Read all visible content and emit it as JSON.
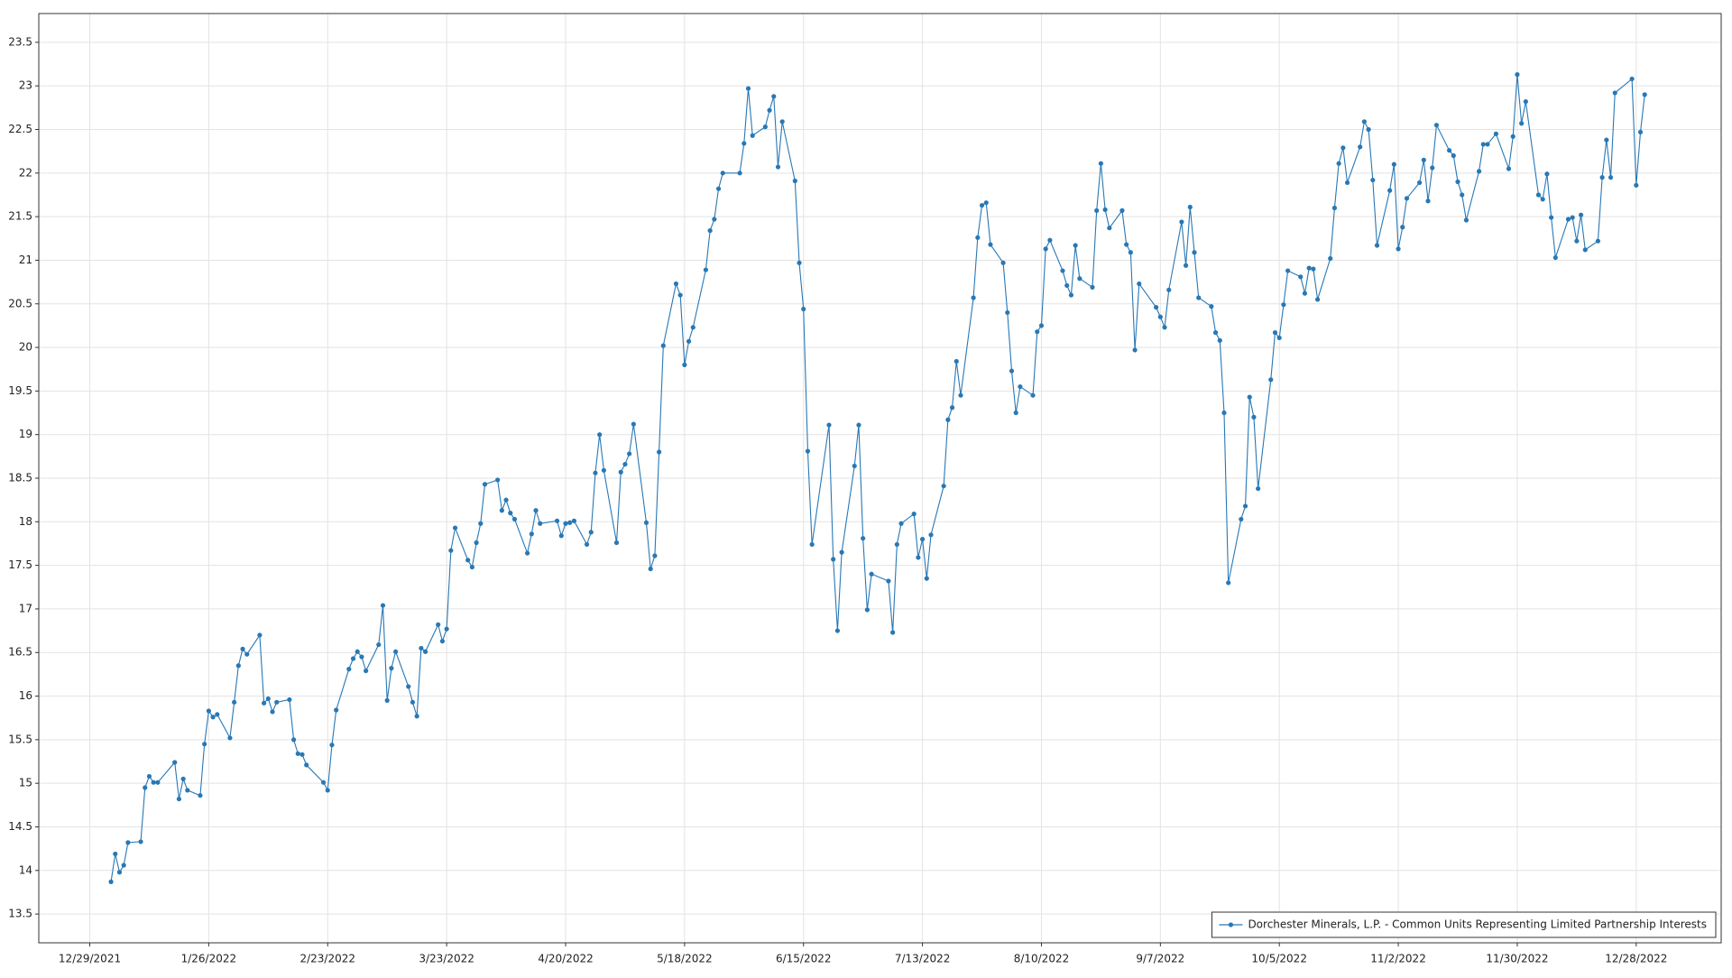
{
  "chart_data": {
    "type": "line",
    "x": [
      "1/3/2022",
      "1/4/2022",
      "1/5/2022",
      "1/6/2022",
      "1/7/2022",
      "1/10/2022",
      "1/11/2022",
      "1/12/2022",
      "1/13/2022",
      "1/14/2022",
      "1/18/2022",
      "1/19/2022",
      "1/20/2022",
      "1/21/2022",
      "1/24/2022",
      "1/25/2022",
      "1/26/2022",
      "1/27/2022",
      "1/28/2022",
      "1/31/2022",
      "2/1/2022",
      "2/2/2022",
      "2/3/2022",
      "2/4/2022",
      "2/7/2022",
      "2/8/2022",
      "2/9/2022",
      "2/10/2022",
      "2/11/2022",
      "2/14/2022",
      "2/15/2022",
      "2/16/2022",
      "2/17/2022",
      "2/18/2022",
      "2/22/2022",
      "2/23/2022",
      "2/24/2022",
      "2/25/2022",
      "2/28/2022",
      "3/1/2022",
      "3/2/2022",
      "3/3/2022",
      "3/4/2022",
      "3/7/2022",
      "3/8/2022",
      "3/9/2022",
      "3/10/2022",
      "3/11/2022",
      "3/14/2022",
      "3/15/2022",
      "3/16/2022",
      "3/17/2022",
      "3/18/2022",
      "3/21/2022",
      "3/22/2022",
      "3/23/2022",
      "3/24/2022",
      "3/25/2022",
      "3/28/2022",
      "3/29/2022",
      "3/30/2022",
      "3/31/2022",
      "4/1/2022",
      "4/4/2022",
      "4/5/2022",
      "4/6/2022",
      "4/7/2022",
      "4/8/2022",
      "4/11/2022",
      "4/12/2022",
      "4/13/2022",
      "4/14/2022",
      "4/18/2022",
      "4/19/2022",
      "4/20/2022",
      "4/21/2022",
      "4/22/2022",
      "4/25/2022",
      "4/26/2022",
      "4/27/2022",
      "4/28/2022",
      "4/29/2022",
      "5/2/2022",
      "5/3/2022",
      "5/4/2022",
      "5/5/2022",
      "5/6/2022",
      "5/9/2022",
      "5/10/2022",
      "5/11/2022",
      "5/12/2022",
      "5/13/2022",
      "5/16/2022",
      "5/17/2022",
      "5/18/2022",
      "5/19/2022",
      "5/20/2022",
      "5/23/2022",
      "5/24/2022",
      "5/25/2022",
      "5/26/2022",
      "5/27/2022",
      "5/31/2022",
      "6/1/2022",
      "6/2/2022",
      "6/3/2022",
      "6/6/2022",
      "6/7/2022",
      "6/8/2022",
      "6/9/2022",
      "6/10/2022",
      "6/13/2022",
      "6/14/2022",
      "6/15/2022",
      "6/16/2022",
      "6/17/2022",
      "6/21/2022",
      "6/22/2022",
      "6/23/2022",
      "6/24/2022",
      "6/27/2022",
      "6/28/2022",
      "6/29/2022",
      "6/30/2022",
      "7/1/2022",
      "7/5/2022",
      "7/6/2022",
      "7/7/2022",
      "7/8/2022",
      "7/11/2022",
      "7/12/2022",
      "7/13/2022",
      "7/14/2022",
      "7/15/2022",
      "7/18/2022",
      "7/19/2022",
      "7/20/2022",
      "7/21/2022",
      "7/22/2022",
      "7/25/2022",
      "7/26/2022",
      "7/27/2022",
      "7/28/2022",
      "7/29/2022",
      "8/1/2022",
      "8/2/2022",
      "8/3/2022",
      "8/4/2022",
      "8/5/2022",
      "8/8/2022",
      "8/9/2022",
      "8/10/2022",
      "8/11/2022",
      "8/12/2022",
      "8/15/2022",
      "8/16/2022",
      "8/17/2022",
      "8/18/2022",
      "8/19/2022",
      "8/22/2022",
      "8/23/2022",
      "8/24/2022",
      "8/25/2022",
      "8/26/2022",
      "8/29/2022",
      "8/30/2022",
      "8/31/2022",
      "9/1/2022",
      "9/2/2022",
      "9/6/2022",
      "9/7/2022",
      "9/8/2022",
      "9/9/2022",
      "9/12/2022",
      "9/13/2022",
      "9/14/2022",
      "9/15/2022",
      "9/16/2022",
      "9/19/2022",
      "9/20/2022",
      "9/21/2022",
      "9/22/2022",
      "9/23/2022",
      "9/26/2022",
      "9/27/2022",
      "9/28/2022",
      "9/29/2022",
      "9/30/2022",
      "10/3/2022",
      "10/4/2022",
      "10/5/2022",
      "10/6/2022",
      "10/7/2022",
      "10/10/2022",
      "10/11/2022",
      "10/12/2022",
      "10/13/2022",
      "10/14/2022",
      "10/17/2022",
      "10/18/2022",
      "10/19/2022",
      "10/20/2022",
      "10/21/2022",
      "10/24/2022",
      "10/25/2022",
      "10/26/2022",
      "10/27/2022",
      "10/28/2022",
      "10/31/2022",
      "11/1/2022",
      "11/2/2022",
      "11/3/2022",
      "11/4/2022",
      "11/7/2022",
      "11/8/2022",
      "11/9/2022",
      "11/10/2022",
      "11/11/2022",
      "11/14/2022",
      "11/15/2022",
      "11/16/2022",
      "11/17/2022",
      "11/18/2022",
      "11/21/2022",
      "11/22/2022",
      "11/23/2022",
      "11/25/2022",
      "11/28/2022",
      "11/29/2022",
      "11/30/2022",
      "12/1/2022",
      "12/2/2022",
      "12/5/2022",
      "12/6/2022",
      "12/7/2022",
      "12/8/2022",
      "12/9/2022",
      "12/12/2022",
      "12/13/2022",
      "12/14/2022",
      "12/15/2022",
      "12/16/2022",
      "12/19/2022",
      "12/20/2022",
      "12/21/2022",
      "12/22/2022",
      "12/23/2022",
      "12/27/2022",
      "12/28/2022",
      "12/29/2022",
      "12/30/2022"
    ],
    "series": [
      {
        "name": "Dorchester Minerals, L.P. - Common Units Representing Limited Partnership Interests",
        "color": "#2878b5",
        "values": [
          13.87,
          14.19,
          13.98,
          14.06,
          14.32,
          14.33,
          14.95,
          15.08,
          15.01,
          15.01,
          15.24,
          14.82,
          15.05,
          14.92,
          14.86,
          15.45,
          15.83,
          15.76,
          15.79,
          15.52,
          15.93,
          16.35,
          16.54,
          16.48,
          16.7,
          15.92,
          15.97,
          15.82,
          15.93,
          15.96,
          15.5,
          15.34,
          15.33,
          15.21,
          15.01,
          14.92,
          15.44,
          15.84,
          16.31,
          16.43,
          16.51,
          16.45,
          16.29,
          16.59,
          17.04,
          15.95,
          16.32,
          16.51,
          16.11,
          15.93,
          15.77,
          16.55,
          16.51,
          16.82,
          16.63,
          16.77,
          17.67,
          17.93,
          17.56,
          17.48,
          17.76,
          17.98,
          18.43,
          18.48,
          18.13,
          18.25,
          18.1,
          18.03,
          17.64,
          17.86,
          18.13,
          17.98,
          18.01,
          17.84,
          17.98,
          17.99,
          18.01,
          17.74,
          17.88,
          18.56,
          19.0,
          18.59,
          17.76,
          18.57,
          18.66,
          18.78,
          19.12,
          17.99,
          17.46,
          17.61,
          18.8,
          20.02,
          20.73,
          20.6,
          19.8,
          20.07,
          20.23,
          20.89,
          21.34,
          21.47,
          21.82,
          22.0,
          22.0,
          22.34,
          22.97,
          22.43,
          22.53,
          22.72,
          22.88,
          22.07,
          22.59,
          21.91,
          20.97,
          20.44,
          18.81,
          17.74,
          19.11,
          17.57,
          16.75,
          17.65,
          18.64,
          19.11,
          17.81,
          16.99,
          17.4,
          17.32,
          16.73,
          17.74,
          17.98,
          18.09,
          17.59,
          17.8,
          17.35,
          17.85,
          18.41,
          19.17,
          19.31,
          19.84,
          19.45,
          20.57,
          21.26,
          21.63,
          21.66,
          21.18,
          20.97,
          20.4,
          19.73,
          19.25,
          19.55,
          19.45,
          20.18,
          20.25,
          21.13,
          21.23,
          20.88,
          20.71,
          20.6,
          21.17,
          20.79,
          20.69,
          21.57,
          22.11,
          21.58,
          21.37,
          21.57,
          21.18,
          21.09,
          19.97,
          20.73,
          20.46,
          20.35,
          20.23,
          20.66,
          21.44,
          20.94,
          21.61,
          21.09,
          20.57,
          20.47,
          20.17,
          20.08,
          19.25,
          17.3,
          18.03,
          18.18,
          19.43,
          19.2,
          18.38,
          19.63,
          20.17,
          20.11,
          20.49,
          20.88,
          20.81,
          20.62,
          20.91,
          20.9,
          20.55,
          21.02,
          21.6,
          22.11,
          22.29,
          21.89,
          22.3,
          22.59,
          22.5,
          21.92,
          21.17,
          21.8,
          22.1,
          21.13,
          21.38,
          21.71,
          21.89,
          22.15,
          21.68,
          22.06,
          22.55,
          22.26,
          22.2,
          21.9,
          21.75,
          21.46,
          22.02,
          22.33,
          22.33,
          22.45,
          22.05,
          22.42,
          23.13,
          22.57,
          22.82,
          21.75,
          21.7,
          21.99,
          21.49,
          21.03,
          21.47,
          21.49,
          21.22,
          21.52,
          21.12,
          21.22,
          21.95,
          22.38,
          21.95,
          22.92,
          23.08,
          21.86,
          22.47,
          22.9
        ]
      }
    ],
    "xlim": [
      "12/17/2021",
      "1/17/2023"
    ],
    "xticks": [
      "12/29/2021",
      "1/26/2022",
      "2/23/2022",
      "3/23/2022",
      "4/20/2022",
      "5/18/2022",
      "6/15/2022",
      "7/13/2022",
      "8/10/2022",
      "9/7/2022",
      "10/5/2022",
      "11/2/2022",
      "11/30/2022",
      "12/28/2022"
    ],
    "ylim": [
      13.17,
      23.83
    ],
    "yticks": [
      13.5,
      14,
      14.5,
      15,
      15.5,
      16,
      16.5,
      17,
      17.5,
      18,
      18.5,
      19,
      19.5,
      20,
      20.5,
      21,
      21.5,
      22,
      22.5,
      23,
      23.5
    ],
    "grid": true,
    "markers": true,
    "legend": "lower right"
  }
}
